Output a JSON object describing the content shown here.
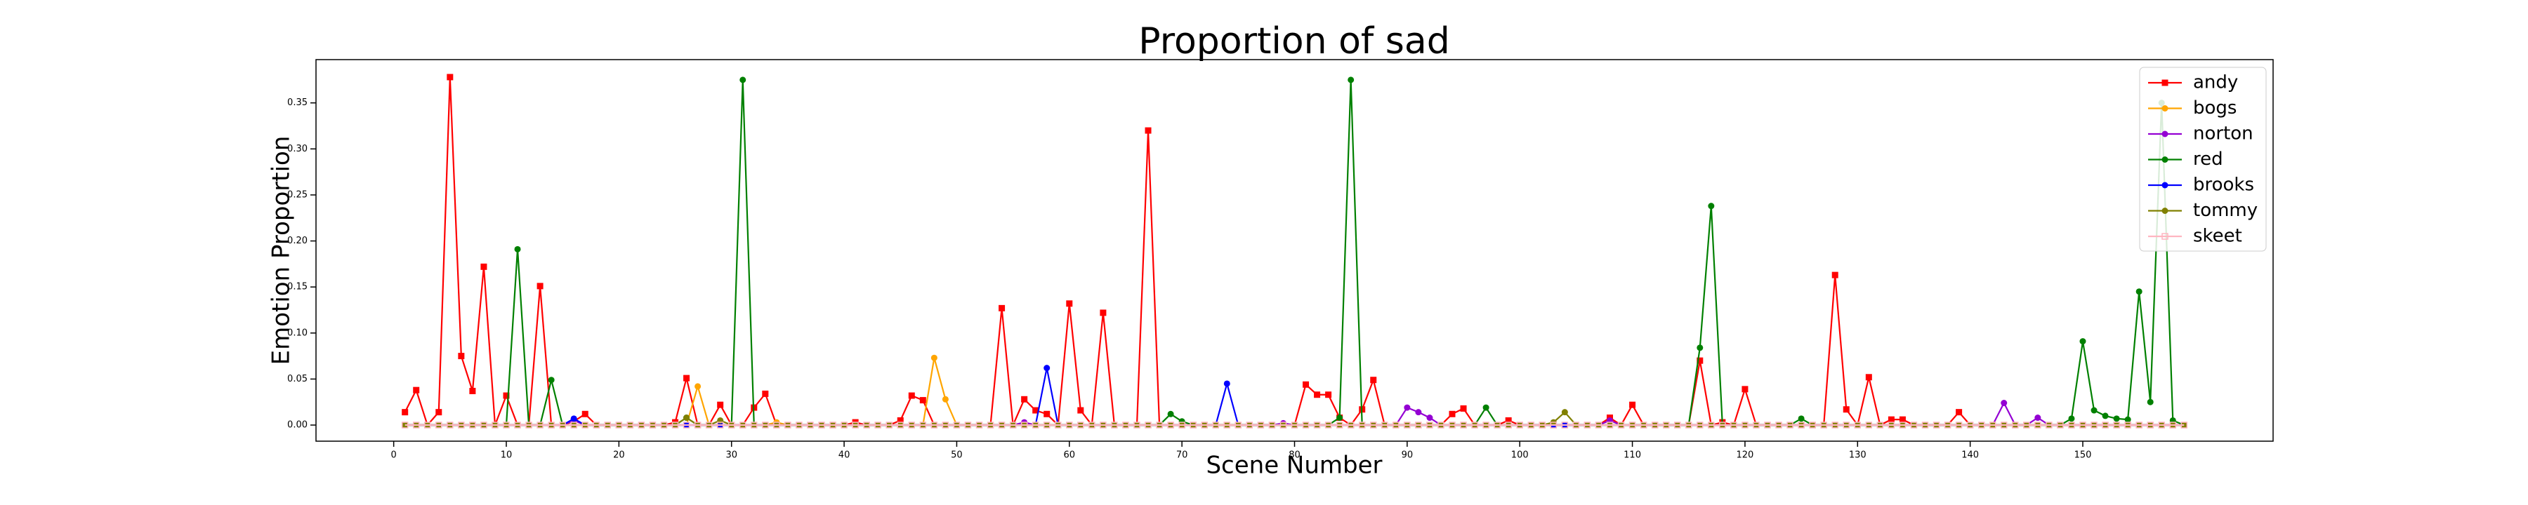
{
  "chart_data": {
    "type": "line",
    "title": "Proportion of sad",
    "x_label": "Scene Number",
    "y_label": "Emotion Proportion",
    "x": [
      1,
      2,
      3,
      4,
      5,
      6,
      7,
      8,
      9,
      10,
      11,
      12,
      13,
      14,
      15,
      16,
      17,
      18,
      19,
      20,
      21,
      22,
      23,
      24,
      25,
      26,
      27,
      28,
      29,
      30,
      31,
      32,
      33,
      34,
      35,
      36,
      37,
      38,
      39,
      40,
      41,
      42,
      43,
      44,
      45,
      46,
      47,
      48,
      49,
      50,
      51,
      52,
      53,
      54,
      55,
      56,
      57,
      58,
      59,
      60,
      61,
      62,
      63,
      64,
      65,
      66,
      67,
      68,
      69,
      70,
      71,
      72,
      73,
      74,
      75,
      76,
      77,
      78,
      79,
      80,
      81,
      82,
      83,
      84,
      85,
      86,
      87,
      88,
      89,
      90,
      91,
      92,
      93,
      94,
      95,
      96,
      97,
      98,
      99,
      100,
      101,
      102,
      103,
      104,
      105,
      106,
      107,
      108,
      109,
      110,
      111,
      112,
      113,
      114,
      115,
      116,
      117,
      118,
      119,
      120,
      121,
      122,
      123,
      124,
      125,
      126,
      127,
      128,
      129,
      130,
      131,
      132,
      133,
      134,
      135,
      136,
      137,
      138,
      139,
      140,
      141,
      142,
      143,
      144,
      145,
      146,
      147,
      148,
      149,
      150,
      151,
      152,
      153,
      154,
      155,
      156,
      157,
      158,
      159
    ],
    "xlim": [
      -6.9,
      166.9
    ],
    "ylim": [
      -0.0175,
      0.397
    ],
    "xticks": [
      0,
      10,
      20,
      30,
      40,
      50,
      60,
      70,
      80,
      90,
      100,
      110,
      120,
      130,
      140,
      150
    ],
    "yticks": [
      {
        "value": 0,
        "label": "0.00"
      },
      {
        "value": 0.05,
        "label": "0.05"
      },
      {
        "value": 0.1,
        "label": "0.10"
      },
      {
        "value": 0.15,
        "label": "0.15"
      },
      {
        "value": 0.2,
        "label": "0.20"
      },
      {
        "value": 0.25,
        "label": "0.25"
      },
      {
        "value": 0.3,
        "label": "0.30"
      },
      {
        "value": 0.35,
        "label": "0.35"
      }
    ],
    "legend": "upper right",
    "series": [
      {
        "name": "andy",
        "color": "#ff0000",
        "marker": "square",
        "values": [
          0.014,
          0.038,
          0,
          0.014,
          0.378,
          0.075,
          0.037,
          0.172,
          0,
          0.032,
          0,
          0,
          0.151,
          0,
          0,
          0.004,
          0.012,
          0,
          0,
          0,
          0,
          0,
          0,
          0,
          0.003,
          0.051,
          0,
          0,
          0.022,
          0,
          0,
          0.019,
          0.034,
          0,
          0,
          0,
          0,
          0,
          0,
          0,
          0.003,
          0,
          0,
          0,
          0.005,
          0.032,
          0.027,
          0,
          0,
          0,
          0,
          0,
          0,
          0.127,
          0,
          0.028,
          0.016,
          0.012,
          0,
          0.132,
          0.016,
          0,
          0.122,
          0,
          0,
          0,
          0.32,
          0,
          0,
          0,
          0,
          0,
          0,
          0,
          0,
          0,
          0,
          0,
          0,
          0,
          0.044,
          0.033,
          0.033,
          0.008,
          0,
          0.017,
          0.049,
          0,
          0,
          0,
          0,
          0,
          0,
          0.012,
          0.018,
          0,
          0,
          0,
          0.005,
          0,
          0,
          0,
          0,
          0,
          0,
          0,
          0,
          0.008,
          0,
          0.022,
          0,
          0,
          0,
          0,
          0,
          0.07,
          0,
          0.003,
          0,
          0.039,
          0,
          0,
          0,
          0,
          0,
          0,
          0,
          0.163,
          0.017,
          0,
          0.052,
          0,
          0.006,
          0.006,
          0,
          0,
          0,
          0,
          0.014,
          0,
          0,
          0,
          0,
          0,
          0,
          0,
          0,
          0,
          0,
          0,
          0,
          0,
          0,
          0,
          0,
          0,
          0,
          0,
          0
        ]
      },
      {
        "name": "bogs",
        "color": "#ffa500",
        "marker": "circle",
        "values": [
          0,
          0,
          0,
          0,
          0,
          0,
          0,
          0,
          0,
          0,
          0,
          0,
          0,
          0,
          0,
          0,
          0,
          0,
          0,
          0,
          0,
          0,
          0,
          0,
          0,
          0,
          0.042,
          0,
          0,
          0,
          0,
          0,
          0,
          0.003,
          0,
          0,
          0,
          0,
          0,
          0,
          0,
          0,
          0,
          0,
          0,
          0,
          0,
          0.073,
          0.028,
          0,
          0,
          0,
          0,
          0,
          0,
          0,
          0,
          0,
          0,
          0,
          0,
          0,
          0,
          0,
          0,
          0,
          0,
          0,
          0,
          0,
          0,
          0,
          0,
          0,
          0,
          0,
          0,
          0,
          0,
          0,
          0,
          0,
          0,
          0,
          0,
          0,
          0,
          0,
          0,
          0,
          0,
          0,
          0,
          0,
          0,
          0,
          0,
          0,
          0,
          0,
          0,
          0,
          0,
          0,
          0,
          0,
          0,
          0,
          0,
          0,
          0,
          0,
          0,
          0,
          0,
          0,
          0,
          0,
          0,
          0,
          0,
          0,
          0,
          0,
          0,
          0,
          0,
          0,
          0,
          0,
          0,
          0,
          0,
          0,
          0,
          0,
          0,
          0,
          0,
          0,
          0,
          0,
          0,
          0,
          0,
          0,
          0,
          0,
          0,
          0,
          0,
          0,
          0,
          0,
          0,
          0,
          0,
          0,
          0
        ]
      },
      {
        "name": "norton",
        "color": "#9400d3",
        "marker": "circle",
        "values": [
          0,
          0,
          0,
          0,
          0,
          0,
          0,
          0,
          0,
          0,
          0,
          0,
          0,
          0,
          0,
          0.005,
          0,
          0,
          0,
          0,
          0,
          0,
          0,
          0,
          0,
          0,
          0,
          0,
          0,
          0,
          0,
          0,
          0,
          0,
          0,
          0,
          0,
          0,
          0,
          0,
          0,
          0,
          0,
          0,
          0,
          0,
          0,
          0,
          0,
          0,
          0,
          0,
          0,
          0,
          0,
          0.003,
          0,
          0,
          0,
          0,
          0,
          0,
          0,
          0,
          0,
          0,
          0,
          0,
          0,
          0,
          0,
          0,
          0,
          0,
          0,
          0,
          0,
          0,
          0.002,
          0,
          0,
          0,
          0,
          0,
          0,
          0,
          0,
          0,
          0,
          0.019,
          0.014,
          0.008,
          0,
          0,
          0,
          0,
          0,
          0,
          0,
          0,
          0,
          0,
          0,
          0,
          0,
          0,
          0,
          0.005,
          0,
          0,
          0,
          0,
          0,
          0,
          0,
          0,
          0,
          0,
          0,
          0,
          0,
          0,
          0,
          0,
          0,
          0,
          0,
          0,
          0,
          0,
          0,
          0,
          0,
          0,
          0,
          0,
          0,
          0,
          0,
          0,
          0,
          0,
          0.024,
          0,
          0,
          0.008,
          0,
          0,
          0,
          0,
          0,
          0,
          0,
          0,
          0,
          0,
          0,
          0,
          0
        ]
      },
      {
        "name": "red",
        "color": "#008000",
        "marker": "circle",
        "values": [
          0,
          0,
          0,
          0,
          0,
          0,
          0,
          0,
          0,
          0,
          0.191,
          0,
          0,
          0.049,
          0,
          0,
          0,
          0,
          0,
          0,
          0,
          0,
          0,
          0,
          0,
          0.008,
          0,
          0,
          0,
          0,
          0.375,
          0,
          0,
          0,
          0,
          0,
          0,
          0,
          0,
          0,
          0,
          0,
          0,
          0,
          0,
          0,
          0,
          0,
          0,
          0,
          0,
          0,
          0,
          0,
          0,
          0,
          0,
          0,
          0,
          0,
          0,
          0,
          0,
          0,
          0,
          0,
          0,
          0,
          0.012,
          0.004,
          0,
          0,
          0,
          0,
          0,
          0,
          0,
          0,
          0,
          0,
          0,
          0,
          0,
          0.008,
          0.375,
          0,
          0,
          0,
          0,
          0,
          0,
          0,
          0,
          0,
          0,
          0,
          0.019,
          0,
          0,
          0,
          0,
          0,
          0,
          0,
          0,
          0,
          0,
          0,
          0,
          0,
          0,
          0,
          0,
          0,
          0,
          0.084,
          0.238,
          0,
          0,
          0,
          0,
          0,
          0,
          0,
          0.007,
          0,
          0,
          0,
          0,
          0,
          0,
          0,
          0,
          0,
          0,
          0,
          0,
          0,
          0,
          0,
          0,
          0,
          0,
          0,
          0,
          0,
          0,
          0,
          0.007,
          0.091,
          0.016,
          0.01,
          0.007,
          0.006,
          0.145,
          0.025,
          0.35,
          0.005,
          0
        ]
      },
      {
        "name": "brooks",
        "color": "#0000ff",
        "marker": "circle",
        "values": [
          0,
          0,
          0,
          0,
          0,
          0,
          0,
          0,
          0,
          0,
          0,
          0,
          0,
          0,
          0,
          0.007,
          0,
          0,
          0,
          0,
          0,
          0,
          0,
          0,
          0,
          0,
          0,
          0,
          0,
          0,
          0,
          0,
          0,
          0,
          0,
          0,
          0,
          0,
          0,
          0,
          0,
          0,
          0,
          0,
          0,
          0,
          0,
          0,
          0,
          0,
          0,
          0,
          0,
          0,
          0,
          0,
          0,
          0.062,
          0,
          0,
          0,
          0,
          0,
          0,
          0,
          0,
          0,
          0,
          0,
          0,
          0,
          0,
          0,
          0.045,
          0,
          0,
          0,
          0,
          0,
          0,
          0,
          0,
          0,
          0,
          0,
          0,
          0,
          0,
          0,
          0,
          0,
          0,
          0,
          0,
          0,
          0,
          0,
          0,
          0,
          0,
          0,
          0,
          0,
          0,
          0,
          0,
          0,
          0,
          0,
          0,
          0,
          0,
          0,
          0,
          0,
          0,
          0,
          0,
          0,
          0,
          0,
          0,
          0,
          0,
          0,
          0,
          0,
          0,
          0,
          0,
          0,
          0,
          0,
          0,
          0,
          0,
          0,
          0,
          0,
          0,
          0,
          0,
          0,
          0,
          0,
          0,
          0,
          0,
          0,
          0,
          0,
          0,
          0,
          0,
          0,
          0,
          0,
          0,
          0
        ]
      },
      {
        "name": "tommy",
        "color": "#808000",
        "marker": "circle",
        "values": [
          0,
          0,
          0,
          0,
          0,
          0,
          0,
          0,
          0,
          0,
          0,
          0,
          0,
          0,
          0,
          0,
          0,
          0,
          0,
          0,
          0,
          0,
          0,
          0,
          0,
          0.008,
          0,
          0,
          0.005,
          0,
          0,
          0,
          0,
          0,
          0,
          0,
          0,
          0,
          0,
          0,
          0,
          0,
          0,
          0,
          0,
          0,
          0,
          0,
          0,
          0,
          0,
          0,
          0,
          0,
          0,
          0,
          0,
          0,
          0,
          0,
          0,
          0,
          0,
          0,
          0,
          0,
          0,
          0,
          0,
          0,
          0,
          0,
          0,
          0,
          0,
          0,
          0,
          0,
          0,
          0,
          0,
          0,
          0,
          0,
          0,
          0,
          0,
          0,
          0,
          0,
          0,
          0,
          0,
          0,
          0,
          0,
          0,
          0,
          0,
          0,
          0,
          0,
          0.003,
          0.014,
          0,
          0,
          0,
          0,
          0,
          0,
          0,
          0,
          0,
          0,
          0,
          0,
          0,
          0,
          0,
          0,
          0,
          0,
          0,
          0,
          0,
          0,
          0,
          0,
          0,
          0,
          0,
          0,
          0,
          0,
          0,
          0,
          0,
          0,
          0,
          0,
          0,
          0,
          0,
          0,
          0,
          0,
          0,
          0,
          0,
          0,
          0,
          0,
          0,
          0,
          0,
          0,
          0,
          0,
          0
        ]
      },
      {
        "name": "skeet",
        "color": "#ffb6c1",
        "marker": "open-square",
        "values": [
          0,
          0,
          0,
          0,
          0,
          0,
          0,
          0,
          0,
          0,
          0,
          0,
          0,
          0,
          0,
          0,
          0,
          0,
          0,
          0,
          0,
          0,
          0,
          0,
          0,
          0,
          0,
          0,
          0,
          0,
          0,
          0,
          0,
          0,
          0,
          0,
          0,
          0,
          0,
          0,
          0,
          0,
          0,
          0,
          0,
          0,
          0,
          0,
          0,
          0,
          0,
          0,
          0,
          0,
          0,
          0,
          0,
          0,
          0,
          0,
          0,
          0,
          0,
          0,
          0,
          0,
          0,
          0,
          0,
          0,
          0,
          0,
          0,
          0,
          0,
          0,
          0,
          0,
          0,
          0,
          0,
          0,
          0,
          0,
          0,
          0,
          0,
          0,
          0,
          0,
          0,
          0,
          0,
          0,
          0,
          0,
          0,
          0,
          0,
          0,
          0,
          0,
          0,
          0,
          0,
          0,
          0,
          0,
          0,
          0,
          0,
          0,
          0,
          0,
          0,
          0,
          0,
          0,
          0,
          0,
          0,
          0,
          0,
          0,
          0,
          0,
          0,
          0,
          0,
          0,
          0,
          0,
          0,
          0,
          0,
          0,
          0,
          0,
          0,
          0,
          0,
          0,
          0,
          0,
          0,
          0,
          0,
          0,
          0,
          0,
          0,
          0,
          0,
          0,
          0,
          0,
          0,
          0,
          0
        ]
      }
    ]
  }
}
